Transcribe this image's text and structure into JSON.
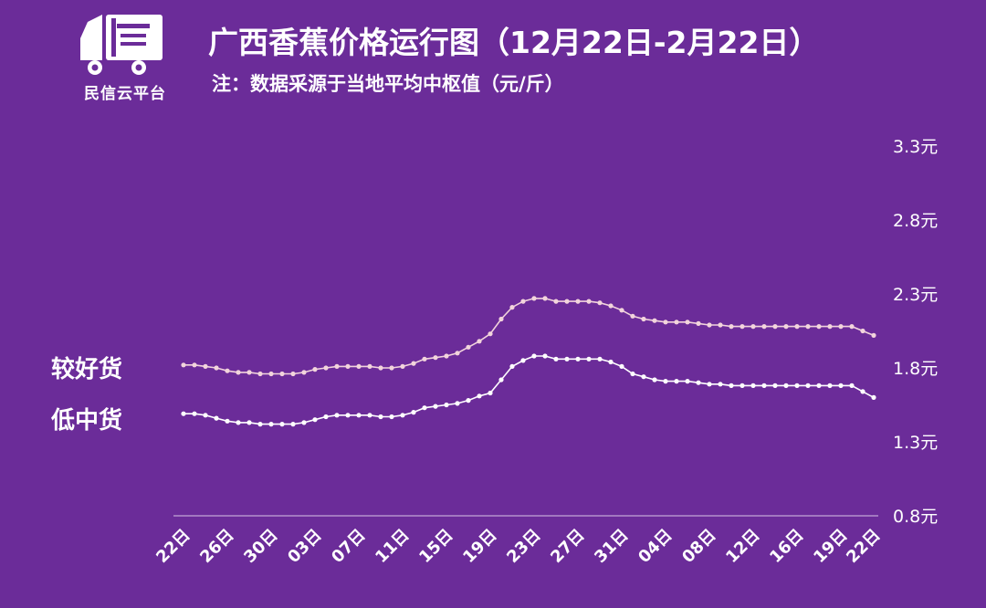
{
  "brand": {
    "name": "民信云平台",
    "logo_icon": "truck-logo-icon"
  },
  "header": {
    "title": "广西香蕉价格运行图（12月22日-2月22日）",
    "note": "注：数据采源于当地平均中枢值（元/斤）"
  },
  "colors": {
    "background": "#6b2c99",
    "good_line": "#f2d4dc",
    "low_line": "#ffffff"
  },
  "chart_data": {
    "type": "line",
    "title": "广西香蕉价格运行图（12月22日-2月22日）",
    "ylabel": "",
    "xlabel": "",
    "ylim": [
      0.8,
      3.3
    ],
    "yticks": [
      "0.8元",
      "1.3元",
      "1.8元",
      "2.3元",
      "2.8元",
      "3.3元"
    ],
    "ytick_values": [
      0.8,
      1.3,
      1.8,
      2.3,
      2.8,
      3.3
    ],
    "grid": false,
    "x_tick_labels": [
      "22日",
      "26日",
      "30日",
      "03日",
      "07日",
      "11日",
      "15日",
      "19日",
      "23日",
      "27日",
      "31日",
      "04日",
      "08日",
      "12日",
      "16日",
      "19日",
      "22日"
    ],
    "x_tick_positions": [
      0,
      4,
      8,
      12,
      16,
      20,
      24,
      28,
      32,
      36,
      40,
      44,
      48,
      52,
      56,
      60,
      63
    ],
    "series": [
      {
        "name": "较好货",
        "values": [
          1.82,
          1.82,
          1.81,
          1.8,
          1.78,
          1.77,
          1.77,
          1.76,
          1.76,
          1.76,
          1.76,
          1.77,
          1.79,
          1.8,
          1.81,
          1.81,
          1.81,
          1.81,
          1.8,
          1.8,
          1.81,
          1.83,
          1.86,
          1.87,
          1.88,
          1.9,
          1.94,
          1.98,
          2.03,
          2.13,
          2.21,
          2.25,
          2.27,
          2.27,
          2.25,
          2.25,
          2.25,
          2.25,
          2.24,
          2.22,
          2.19,
          2.15,
          2.13,
          2.12,
          2.11,
          2.11,
          2.11,
          2.1,
          2.09,
          2.09,
          2.08,
          2.08,
          2.08,
          2.08,
          2.08,
          2.08,
          2.08,
          2.08,
          2.08,
          2.08,
          2.08,
          2.08,
          2.05,
          2.02
        ]
      },
      {
        "name": "低中货",
        "values": [
          1.49,
          1.49,
          1.48,
          1.46,
          1.44,
          1.43,
          1.43,
          1.42,
          1.42,
          1.42,
          1.42,
          1.43,
          1.45,
          1.47,
          1.48,
          1.48,
          1.48,
          1.48,
          1.47,
          1.47,
          1.48,
          1.5,
          1.53,
          1.54,
          1.55,
          1.56,
          1.58,
          1.61,
          1.63,
          1.72,
          1.81,
          1.85,
          1.88,
          1.88,
          1.86,
          1.86,
          1.86,
          1.86,
          1.86,
          1.84,
          1.81,
          1.76,
          1.74,
          1.72,
          1.71,
          1.71,
          1.71,
          1.7,
          1.69,
          1.69,
          1.68,
          1.68,
          1.68,
          1.68,
          1.68,
          1.68,
          1.68,
          1.68,
          1.68,
          1.68,
          1.68,
          1.68,
          1.64,
          1.6
        ]
      }
    ]
  }
}
